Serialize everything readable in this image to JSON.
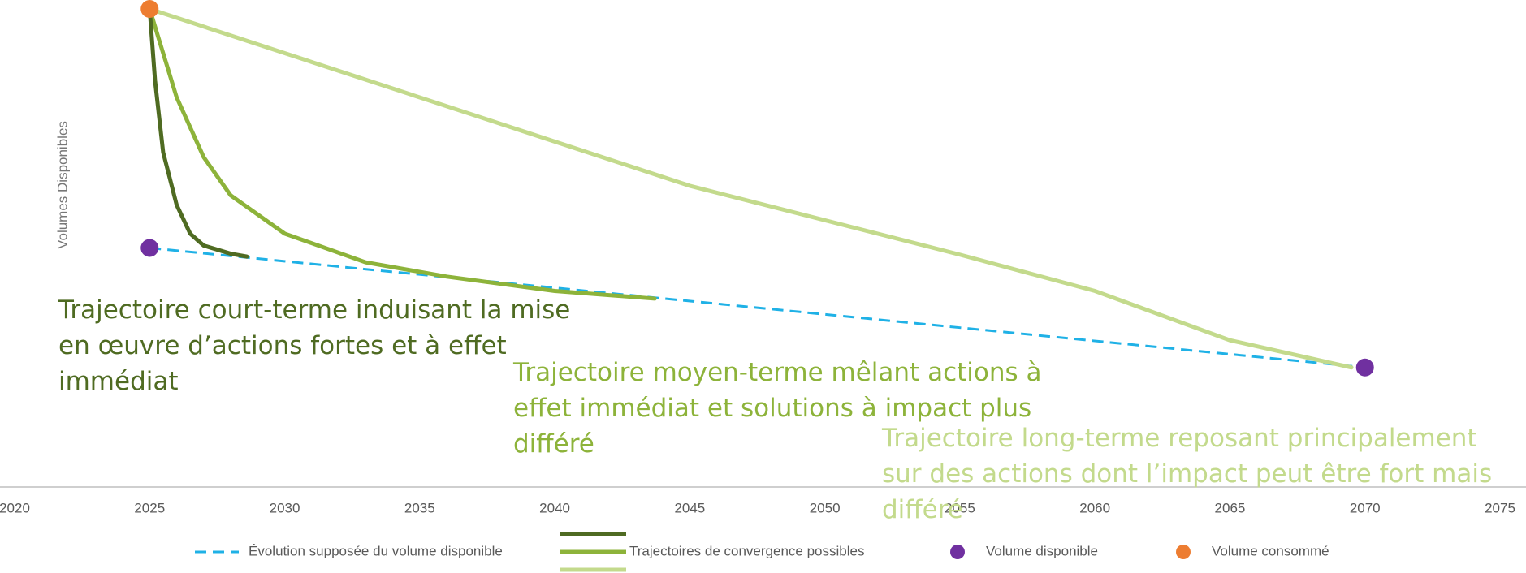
{
  "chart_data": {
    "type": "line",
    "y_label": "Volumes Disponibles",
    "xlim": [
      2020,
      2075
    ],
    "xticks": [
      2020,
      2025,
      2030,
      2035,
      2040,
      2045,
      2050,
      2055,
      2060,
      2065,
      2070,
      2075
    ],
    "ylim": [
      0,
      100
    ],
    "series": [
      {
        "name": "Évolution supposée du volume disponible",
        "color": "#1fb1e6",
        "dashed": true,
        "x": [
          2025,
          2070
        ],
        "values": [
          50,
          25
        ]
      }
    ],
    "trajectories": {
      "name": "Trajectoires de convergence possibles",
      "lines": [
        {
          "color": "#4f6b22",
          "x": [
            2025,
            2025.2,
            2025.5,
            2026,
            2026.5,
            2027,
            2028,
            2028.6
          ],
          "values": [
            100,
            85,
            70,
            59,
            53,
            50.5,
            48.8,
            48.2
          ]
        },
        {
          "color": "#8db33a",
          "x": [
            2025,
            2026,
            2027,
            2028,
            2030,
            2033,
            2036,
            2040,
            2043.7
          ],
          "values": [
            100,
            81.5,
            69,
            61,
            53,
            47,
            44,
            41,
            39.4
          ]
        },
        {
          "color": "#c3da8c",
          "x": [
            2025,
            2035,
            2045,
            2055,
            2060,
            2065,
            2069.5
          ],
          "values": [
            100,
            81.5,
            63,
            48.6,
            41,
            30.7,
            25
          ]
        }
      ]
    },
    "points": [
      {
        "name": "Volume disponible",
        "color": "#7030a0",
        "x": [
          2025,
          2070
        ],
        "values": [
          50,
          25
        ]
      },
      {
        "name": "Volume consommé",
        "color": "#ed7d31",
        "x": [
          2025
        ],
        "values": [
          100
        ]
      }
    ],
    "annotations": [
      {
        "text": "Trajectoire court-terme induisant la mise en œuvre d’actions fortes et à effet immédiat",
        "color": "#4f6b22"
      },
      {
        "text": "Trajectoire moyen-terme mêlant actions à effet immédiat et solutions à impact plus différé",
        "color": "#8db33a"
      },
      {
        "text": "Trajectoire long-terme reposant principalement sur des actions dont l’impact peut être fort mais différé",
        "color": "#c3da8c"
      }
    ]
  }
}
